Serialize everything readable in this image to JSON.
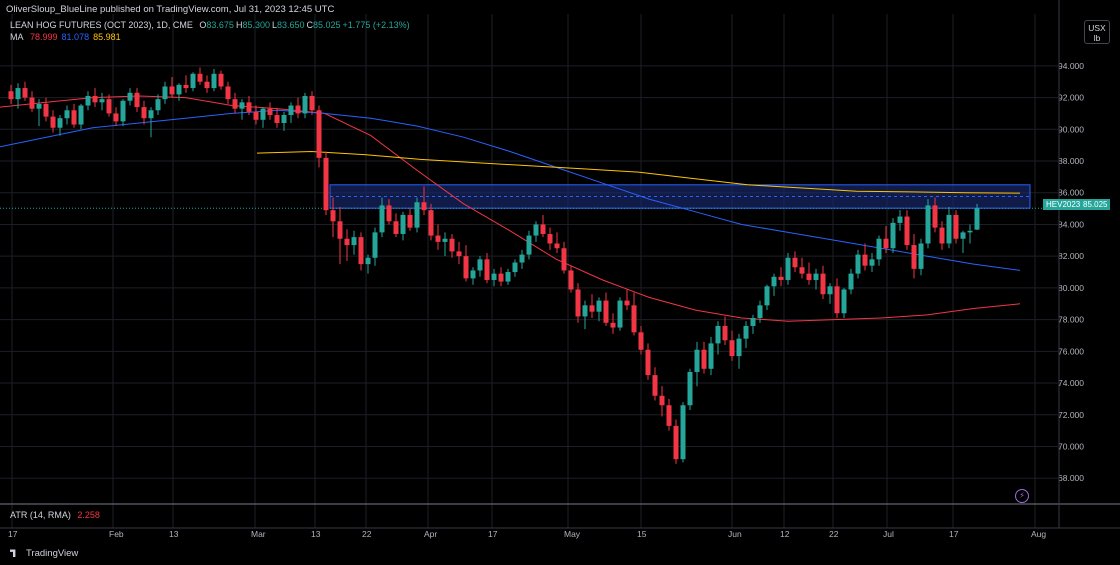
{
  "header": {
    "published_by": "OliverSloup_BlueLine published on TradingView.com, Jul 31, 2023 12:45 UTC",
    "symbol": "LEAN HOG FUTURES (OCT 2023), 1D, CME",
    "ohlc": [
      {
        "label": "O",
        "value": "83.675"
      },
      {
        "label": "H",
        "value": "85.300"
      },
      {
        "label": "L",
        "value": "83.650"
      },
      {
        "label": "C",
        "value": "85.025"
      },
      {
        "label": "",
        "value": "+1.775 (+2.13%)"
      }
    ],
    "ma_label": "MA",
    "ma_values": [
      {
        "value": "78.999",
        "color": "#f23645"
      },
      {
        "value": "81.078",
        "color": "#2962ff"
      },
      {
        "value": "85.981",
        "color": "#ffc400"
      }
    ]
  },
  "unit_button": {
    "line1": "USX",
    "line2": "lb"
  },
  "price_axis": {
    "ticks": [
      "94.000",
      "92.000",
      "90.000",
      "88.000",
      "86.000",
      "84.000",
      "82.000",
      "80.000",
      "78.000",
      "76.000",
      "74.000",
      "72.000",
      "70.000",
      "68.000"
    ],
    "badge_symbol": "HEV2023",
    "badge_price": "85.025"
  },
  "time_axis": {
    "ticks": [
      "17",
      "Feb",
      "13",
      "Mar",
      "13",
      "22",
      "Apr",
      "17",
      "May",
      "15",
      "Jun",
      "12",
      "22",
      "Jul",
      "17",
      "Aug"
    ]
  },
  "atr": {
    "label": "ATR (14, RMA)",
    "value": "2.258"
  },
  "footer": {
    "brand": "TradingView"
  },
  "colors": {
    "up": "#26a69a",
    "down": "#f23645",
    "zone_border": "#2962ff",
    "zone_fill": "#1a2a6e",
    "ma_red": "#f23645",
    "ma_blue": "#2962ff",
    "ma_yellow": "#ffc400",
    "grid": "#1c1f26"
  },
  "chart_data": {
    "type": "candlestick",
    "title": "LEAN HOG FUTURES (OCT 2023), 1D, CME",
    "ylim": [
      66.5,
      95.0
    ],
    "zone": {
      "low": 85.025,
      "high": 86.5
    },
    "candles": [
      [
        92.4,
        92.8,
        91.6,
        91.9
      ],
      [
        91.9,
        92.9,
        91.3,
        92.6
      ],
      [
        92.6,
        93.0,
        91.8,
        92.0
      ],
      [
        92.0,
        92.4,
        91.1,
        91.3
      ],
      [
        91.3,
        91.9,
        90.2,
        91.6
      ],
      [
        91.6,
        92.0,
        90.5,
        90.8
      ],
      [
        90.8,
        91.2,
        89.8,
        90.1
      ],
      [
        90.1,
        90.9,
        89.6,
        90.7
      ],
      [
        90.7,
        91.5,
        90.3,
        91.2
      ],
      [
        91.2,
        91.6,
        90.1,
        90.3
      ],
      [
        90.3,
        91.6,
        90.0,
        91.5
      ],
      [
        91.5,
        92.4,
        91.2,
        92.1
      ],
      [
        92.1,
        92.6,
        91.4,
        91.7
      ],
      [
        91.7,
        92.3,
        91.2,
        91.9
      ],
      [
        91.9,
        92.2,
        90.8,
        91.0
      ],
      [
        91.0,
        91.4,
        90.2,
        90.5
      ],
      [
        90.5,
        91.9,
        90.2,
        91.8
      ],
      [
        91.8,
        92.6,
        91.5,
        92.3
      ],
      [
        92.3,
        92.6,
        91.1,
        91.4
      ],
      [
        91.4,
        91.8,
        90.3,
        90.7
      ],
      [
        90.7,
        91.4,
        89.5,
        91.2
      ],
      [
        91.2,
        92.2,
        90.9,
        91.9
      ],
      [
        91.9,
        93.0,
        91.6,
        92.7
      ],
      [
        92.7,
        93.3,
        92.0,
        92.2
      ],
      [
        92.2,
        92.9,
        91.8,
        92.8
      ],
      [
        92.8,
        93.4,
        92.3,
        92.6
      ],
      [
        92.6,
        93.6,
        92.4,
        93.5
      ],
      [
        93.5,
        93.9,
        92.8,
        93.0
      ],
      [
        93.0,
        93.4,
        92.3,
        92.6
      ],
      [
        92.6,
        93.8,
        92.4,
        93.5
      ],
      [
        93.5,
        93.7,
        92.5,
        92.7
      ],
      [
        92.7,
        93.0,
        91.6,
        91.9
      ],
      [
        91.9,
        92.3,
        91.0,
        91.3
      ],
      [
        91.3,
        91.9,
        90.6,
        91.7
      ],
      [
        91.7,
        92.1,
        90.9,
        91.1
      ],
      [
        91.1,
        91.5,
        90.3,
        90.6
      ],
      [
        90.6,
        91.4,
        90.1,
        91.3
      ],
      [
        91.3,
        91.7,
        90.6,
        90.9
      ],
      [
        90.9,
        91.3,
        90.1,
        90.4
      ],
      [
        90.4,
        91.1,
        89.9,
        90.9
      ],
      [
        90.9,
        91.7,
        90.4,
        91.5
      ],
      [
        91.5,
        92.0,
        90.7,
        91.0
      ],
      [
        91.0,
        92.3,
        90.7,
        92.1
      ],
      [
        92.1,
        92.4,
        90.9,
        91.2
      ],
      [
        91.2,
        91.5,
        87.6,
        88.2
      ],
      [
        88.2,
        88.6,
        84.6,
        84.9
      ],
      [
        84.9,
        85.7,
        83.2,
        84.2
      ],
      [
        84.2,
        85.1,
        81.5,
        83.1
      ],
      [
        83.1,
        83.7,
        81.7,
        82.7
      ],
      [
        82.7,
        83.6,
        82.1,
        83.2
      ],
      [
        83.2,
        83.5,
        81.1,
        81.5
      ],
      [
        81.5,
        82.1,
        80.9,
        81.9
      ],
      [
        81.9,
        83.8,
        81.4,
        83.5
      ],
      [
        83.5,
        85.7,
        83.2,
        85.2
      ],
      [
        85.2,
        85.6,
        84.0,
        84.2
      ],
      [
        84.2,
        84.7,
        83.2,
        83.4
      ],
      [
        83.4,
        84.8,
        83.0,
        84.6
      ],
      [
        84.6,
        85.0,
        83.6,
        83.8
      ],
      [
        83.8,
        85.7,
        83.5,
        85.4
      ],
      [
        85.4,
        86.4,
        84.6,
        84.9
      ],
      [
        84.9,
        85.3,
        83.0,
        83.3
      ],
      [
        83.3,
        84.0,
        82.4,
        82.9
      ],
      [
        82.9,
        83.5,
        82.0,
        83.1
      ],
      [
        83.1,
        83.4,
        81.9,
        82.3
      ],
      [
        82.3,
        82.9,
        81.5,
        82.0
      ],
      [
        82.0,
        82.7,
        80.4,
        80.6
      ],
      [
        80.6,
        81.3,
        80.2,
        81.1
      ],
      [
        81.1,
        82.0,
        80.7,
        81.8
      ],
      [
        81.8,
        82.2,
        80.3,
        80.5
      ],
      [
        80.5,
        81.2,
        80.1,
        80.9
      ],
      [
        80.9,
        81.3,
        80.1,
        80.4
      ],
      [
        80.4,
        81.2,
        80.2,
        81.0
      ],
      [
        81.0,
        81.8,
        80.7,
        81.6
      ],
      [
        81.6,
        82.4,
        81.2,
        82.1
      ],
      [
        82.1,
        83.6,
        81.8,
        83.3
      ],
      [
        83.3,
        84.2,
        82.9,
        84.0
      ],
      [
        84.0,
        84.6,
        83.2,
        83.4
      ],
      [
        83.4,
        83.8,
        82.4,
        82.8
      ],
      [
        82.8,
        83.5,
        82.2,
        82.5
      ],
      [
        82.5,
        82.9,
        80.9,
        81.1
      ],
      [
        81.1,
        81.4,
        79.7,
        79.9
      ],
      [
        79.9,
        80.3,
        77.8,
        78.2
      ],
      [
        78.2,
        79.2,
        77.4,
        78.9
      ],
      [
        78.9,
        79.6,
        78.1,
        78.5
      ],
      [
        78.5,
        79.4,
        77.9,
        79.2
      ],
      [
        79.2,
        79.7,
        77.6,
        77.8
      ],
      [
        77.8,
        78.4,
        77.1,
        77.5
      ],
      [
        77.5,
        79.4,
        77.3,
        79.2
      ],
      [
        79.2,
        79.9,
        78.6,
        78.9
      ],
      [
        78.9,
        79.7,
        77.0,
        77.2
      ],
      [
        77.2,
        77.6,
        75.8,
        76.1
      ],
      [
        76.1,
        76.5,
        74.2,
        74.5
      ],
      [
        74.5,
        75.0,
        72.9,
        73.2
      ],
      [
        73.2,
        73.8,
        71.9,
        72.6
      ],
      [
        72.6,
        73.0,
        71.0,
        71.3
      ],
      [
        71.3,
        71.7,
        68.9,
        69.2
      ],
      [
        69.2,
        72.8,
        69.0,
        72.6
      ],
      [
        72.6,
        74.9,
        72.3,
        74.7
      ],
      [
        74.7,
        76.6,
        73.8,
        76.1
      ],
      [
        76.1,
        76.6,
        74.6,
        74.9
      ],
      [
        74.9,
        76.9,
        74.5,
        76.5
      ],
      [
        76.5,
        77.9,
        75.8,
        77.6
      ],
      [
        77.6,
        78.2,
        76.4,
        76.7
      ],
      [
        76.7,
        77.3,
        75.4,
        75.7
      ],
      [
        75.7,
        77.1,
        74.9,
        76.8
      ],
      [
        76.8,
        77.9,
        76.2,
        77.6
      ],
      [
        77.6,
        78.3,
        77.1,
        78.1
      ],
      [
        78.1,
        79.2,
        77.8,
        78.9
      ],
      [
        78.9,
        80.2,
        78.6,
        80.1
      ],
      [
        80.1,
        80.9,
        79.5,
        80.7
      ],
      [
        80.7,
        81.3,
        80.1,
        80.5
      ],
      [
        80.5,
        82.2,
        80.2,
        81.9
      ],
      [
        81.9,
        82.3,
        81.0,
        81.3
      ],
      [
        81.3,
        81.9,
        80.6,
        80.9
      ],
      [
        80.9,
        81.6,
        80.2,
        80.5
      ],
      [
        80.5,
        81.2,
        79.9,
        80.9
      ],
      [
        80.9,
        81.4,
        79.3,
        79.6
      ],
      [
        79.6,
        80.3,
        79.0,
        80.1
      ],
      [
        80.1,
        80.6,
        78.1,
        78.4
      ],
      [
        78.4,
        80.0,
        78.1,
        79.9
      ],
      [
        79.9,
        81.2,
        79.6,
        80.9
      ],
      [
        80.9,
        82.4,
        80.6,
        82.1
      ],
      [
        82.1,
        82.8,
        81.1,
        81.4
      ],
      [
        81.4,
        82.2,
        81.0,
        81.8
      ],
      [
        81.8,
        83.3,
        81.4,
        83.1
      ],
      [
        83.1,
        83.9,
        82.2,
        82.5
      ],
      [
        82.5,
        84.4,
        82.2,
        84.1
      ],
      [
        84.1,
        84.9,
        83.6,
        84.5
      ],
      [
        84.5,
        84.9,
        82.4,
        82.7
      ],
      [
        82.7,
        83.4,
        80.6,
        81.2
      ],
      [
        81.2,
        83.1,
        80.8,
        82.8
      ],
      [
        82.8,
        85.6,
        82.5,
        85.2
      ],
      [
        85.2,
        85.7,
        83.5,
        83.8
      ],
      [
        83.8,
        84.2,
        82.4,
        82.8
      ],
      [
        82.8,
        85.1,
        82.5,
        84.6
      ],
      [
        84.6,
        84.9,
        82.8,
        83.1
      ],
      [
        83.1,
        83.6,
        82.2,
        83.5
      ],
      [
        83.5,
        84.0,
        82.8,
        83.6
      ],
      [
        83.675,
        85.3,
        83.65,
        85.025
      ]
    ],
    "ma_series": [
      {
        "ma": "78.999",
        "color": "#f23645",
        "start": 0,
        "points": [
          91.4,
          91.7,
          92.0,
          92.1,
          92.0,
          91.5,
          91.3,
          91.0,
          89.6,
          87.4,
          85.3,
          83.6,
          81.8,
          80.5,
          79.4,
          78.6,
          78.1,
          77.9,
          78.0,
          78.1,
          78.3,
          78.7,
          79.0
        ]
      },
      {
        "ma": "81.078",
        "color": "#2962ff",
        "start": 0,
        "points": [
          88.9,
          89.5,
          90.1,
          90.4,
          90.7,
          91.0,
          91.2,
          91.0,
          90.7,
          90.2,
          89.5,
          88.6,
          87.6,
          86.6,
          85.6,
          84.8,
          84.0,
          83.5,
          83.0,
          82.5,
          82.0,
          81.5,
          81.1
        ]
      },
      {
        "ma": "85.981",
        "color": "#ffc400",
        "start": 8,
        "points": [
          88.5,
          88.6,
          88.4,
          88.1,
          87.9,
          87.7,
          87.5,
          87.3,
          86.9,
          86.5,
          86.3,
          86.1,
          86.05,
          86.0,
          85.98
        ]
      }
    ]
  }
}
